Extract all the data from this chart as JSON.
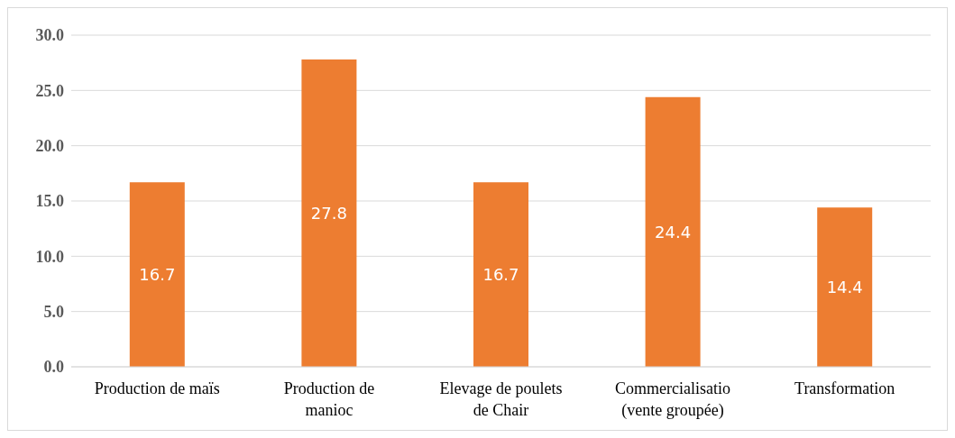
{
  "chart_data": {
    "type": "bar",
    "categories": [
      "Production de maïs",
      "Production de manioc",
      "Elevage de poulets de Chair",
      "Commercialisatio (vente groupée)",
      "Transformation"
    ],
    "values": [
      16.7,
      27.8,
      16.7,
      24.4,
      14.4
    ],
    "color": "#ed7d31",
    "ylim": [
      0,
      30
    ],
    "yticks": [
      {
        "value": 0,
        "label": "0.0"
      },
      {
        "value": 5,
        "label": "5.0"
      },
      {
        "value": 10,
        "label": "10.0"
      },
      {
        "value": 15,
        "label": "15.0"
      },
      {
        "value": 20,
        "label": "20.0"
      },
      {
        "value": 25,
        "label": "25.0"
      },
      {
        "value": 30,
        "label": "30.0"
      }
    ],
    "grid": "y",
    "data_labels": true
  }
}
